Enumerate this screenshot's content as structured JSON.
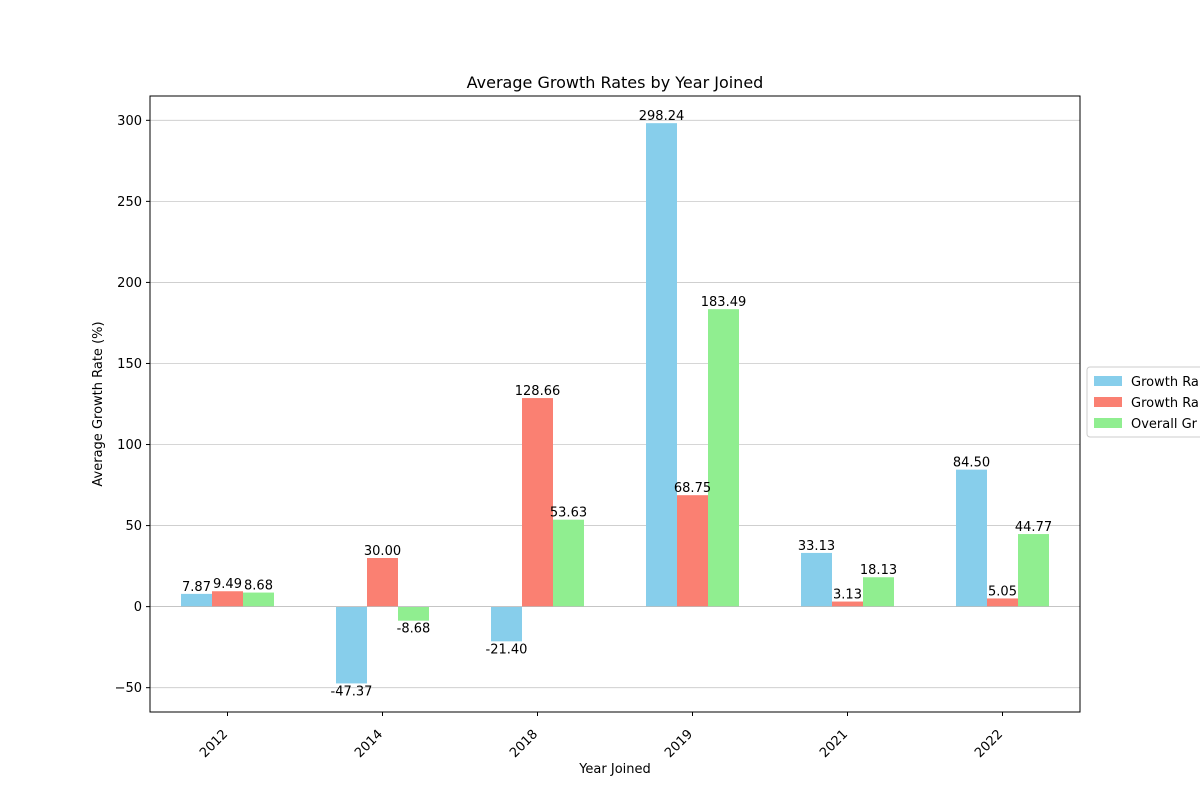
{
  "chart_data": {
    "type": "bar",
    "title": "Average Growth Rates by Year Joined",
    "xlabel": "Year Joined",
    "ylabel": "Average Growth Rate (%)",
    "categories": [
      "2012",
      "2014",
      "2018",
      "2019",
      "2021",
      "2022"
    ],
    "ylim": [
      -65,
      315
    ],
    "yticks": [
      -50,
      0,
      50,
      100,
      150,
      200,
      250,
      300
    ],
    "grid": "y",
    "legend_position": "right",
    "series": [
      {
        "name": "Growth Ra",
        "color": "#87ceeb",
        "values": [
          7.87,
          -47.37,
          -21.4,
          298.24,
          33.13,
          84.5
        ]
      },
      {
        "name": "Growth Ra",
        "color": "#fa8072",
        "values": [
          9.49,
          30.0,
          128.66,
          68.75,
          3.13,
          5.05
        ]
      },
      {
        "name": "Overall Gr",
        "color": "#90ee90",
        "values": [
          8.68,
          -8.68,
          53.63,
          183.49,
          18.13,
          44.77
        ]
      }
    ]
  }
}
